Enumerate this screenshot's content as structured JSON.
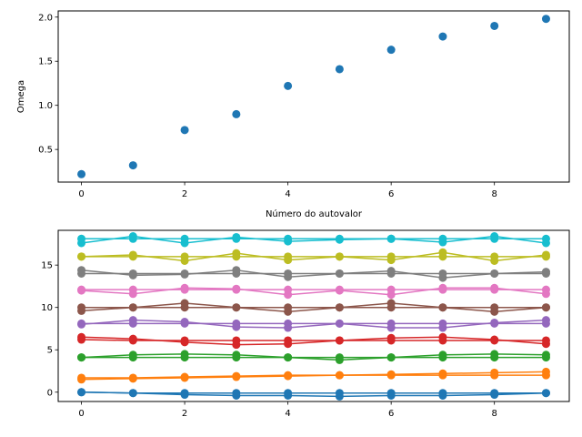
{
  "chart_data": [
    {
      "type": "scatter",
      "xlabel": "Número do autovalor",
      "ylabel": "Omega",
      "xlim": [
        -0.45,
        9.45
      ],
      "ylim": [
        0.13,
        2.07
      ],
      "xticks": [
        0,
        2,
        4,
        6,
        8
      ],
      "xtick_labels": [
        "0",
        "2",
        "4",
        "6",
        "8"
      ],
      "yticks": [
        0.5,
        1.0,
        1.5,
        2.0
      ],
      "ytick_labels": [
        "0.5",
        "1.0",
        "1.5",
        "2.0"
      ],
      "grid": false,
      "series": [
        {
          "color": "#1f77b4",
          "x": [
            0,
            1,
            2,
            3,
            4,
            5,
            6,
            7,
            8,
            9
          ],
          "y": [
            0.22,
            0.32,
            0.72,
            0.9,
            1.22,
            1.41,
            1.63,
            1.78,
            1.9,
            1.98
          ]
        }
      ]
    },
    {
      "type": "line",
      "xlim": [
        -0.45,
        9.45
      ],
      "ylim": [
        -1.1,
        19.1
      ],
      "xticks": [
        0,
        2,
        4,
        6,
        8
      ],
      "xtick_labels": [
        "0",
        "2",
        "4",
        "6",
        "8"
      ],
      "yticks": [
        0,
        5,
        10,
        15
      ],
      "ytick_labels": [
        "0",
        "5",
        "10",
        "15"
      ],
      "grid": false,
      "markers": true,
      "x": [
        0,
        1,
        2,
        3,
        4,
        5,
        6,
        7,
        8,
        9
      ],
      "series": [
        {
          "color": "#1f77b4",
          "values": [
            0.0,
            -0.1,
            -0.3,
            -0.4,
            -0.4,
            -0.5,
            -0.4,
            -0.4,
            -0.3,
            -0.1
          ]
        },
        {
          "color": "#1f77b4",
          "values": [
            0.0,
            -0.1,
            -0.1,
            -0.1,
            -0.1,
            -0.1,
            -0.1,
            -0.1,
            -0.1,
            -0.1
          ]
        },
        {
          "color": "#ff7f0e",
          "values": [
            1.5,
            1.6,
            1.7,
            1.8,
            1.9,
            2.0,
            2.1,
            2.2,
            2.3,
            2.4
          ]
        },
        {
          "color": "#ff7f0e",
          "values": [
            1.7,
            1.7,
            1.8,
            1.9,
            2.0,
            2.0,
            2.0,
            2.0,
            2.0,
            2.0
          ]
        },
        {
          "color": "#2ca02c",
          "values": [
            4.1,
            4.4,
            4.5,
            4.4,
            4.1,
            3.8,
            4.1,
            4.4,
            4.5,
            4.4
          ]
        },
        {
          "color": "#2ca02c",
          "values": [
            4.1,
            4.1,
            4.1,
            4.1,
            4.1,
            4.1,
            4.1,
            4.1,
            4.1,
            4.1
          ]
        },
        {
          "color": "#d62728",
          "values": [
            6.5,
            6.3,
            5.9,
            5.6,
            5.7,
            6.1,
            6.4,
            6.5,
            6.2,
            5.7
          ]
        },
        {
          "color": "#d62728",
          "values": [
            6.2,
            6.1,
            6.1,
            6.1,
            6.1,
            6.1,
            6.1,
            6.1,
            6.1,
            6.1
          ]
        },
        {
          "color": "#9467bd",
          "values": [
            8.0,
            8.5,
            8.3,
            7.7,
            7.6,
            8.1,
            7.6,
            7.6,
            8.2,
            8.5
          ]
        },
        {
          "color": "#9467bd",
          "values": [
            8.1,
            8.1,
            8.1,
            8.1,
            8.1,
            8.1,
            8.1,
            8.1,
            8.1,
            8.1
          ]
        },
        {
          "color": "#8c564b",
          "values": [
            9.6,
            10.0,
            10.5,
            10.0,
            9.5,
            10.0,
            10.5,
            10.0,
            9.5,
            10.0
          ]
        },
        {
          "color": "#8c564b",
          "values": [
            10.0,
            10.0,
            10.0,
            10.0,
            10.0,
            10.0,
            10.0,
            10.0,
            10.0,
            10.0
          ]
        },
        {
          "color": "#e377c2",
          "values": [
            12.0,
            11.6,
            12.3,
            12.2,
            11.5,
            12.0,
            11.5,
            12.3,
            12.3,
            11.6
          ]
        },
        {
          "color": "#e377c2",
          "values": [
            12.1,
            12.1,
            12.1,
            12.1,
            12.1,
            12.1,
            12.1,
            12.1,
            12.1,
            12.1
          ]
        },
        {
          "color": "#7f7f7f",
          "values": [
            14.4,
            13.8,
            13.9,
            14.4,
            13.6,
            14.0,
            14.3,
            13.5,
            14.0,
            14.2
          ]
        },
        {
          "color": "#7f7f7f",
          "values": [
            14.0,
            14.0,
            14.0,
            14.0,
            14.0,
            14.0,
            14.0,
            14.0,
            14.0,
            14.0
          ]
        },
        {
          "color": "#bcbd22",
          "values": [
            16.0,
            16.2,
            15.5,
            16.4,
            15.6,
            16.0,
            15.6,
            16.5,
            15.5,
            16.2
          ]
        },
        {
          "color": "#bcbd22",
          "values": [
            16.0,
            16.0,
            16.0,
            16.0,
            16.0,
            16.0,
            16.0,
            16.0,
            16.0,
            16.0
          ]
        },
        {
          "color": "#17becf",
          "values": [
            17.6,
            18.4,
            17.6,
            18.3,
            17.8,
            18.0,
            18.1,
            17.7,
            18.4,
            17.6
          ]
        },
        {
          "color": "#17becf",
          "values": [
            18.1,
            18.1,
            18.1,
            18.1,
            18.1,
            18.1,
            18.1,
            18.1,
            18.1,
            18.1
          ]
        }
      ]
    }
  ]
}
